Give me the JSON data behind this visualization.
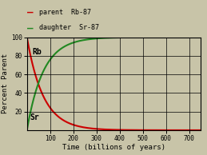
{
  "xlabel": "Time (billions of years)",
  "ylabel": "Percent Parent",
  "xlim": [
    0,
    750
  ],
  "ylim": [
    0,
    100
  ],
  "xticks": [
    100,
    200,
    300,
    400,
    500,
    600,
    700
  ],
  "yticks": [
    20,
    40,
    60,
    80,
    100
  ],
  "half_life": 48.8,
  "parent_color": "#cc0000",
  "daughter_color": "#228822",
  "parent_label": "parent  Rb-87",
  "daughter_label": "daughter  Sr-87",
  "rb_annotation": "Rb",
  "sr_annotation": "Sr",
  "bg_color": "#c8c4a8",
  "grid_color": "#000000",
  "line_width": 1.5,
  "figsize": [
    2.59,
    1.94
  ],
  "dpi": 100,
  "rb_x": 22,
  "rb_y": 82,
  "sr_x": 14,
  "sr_y": 11
}
